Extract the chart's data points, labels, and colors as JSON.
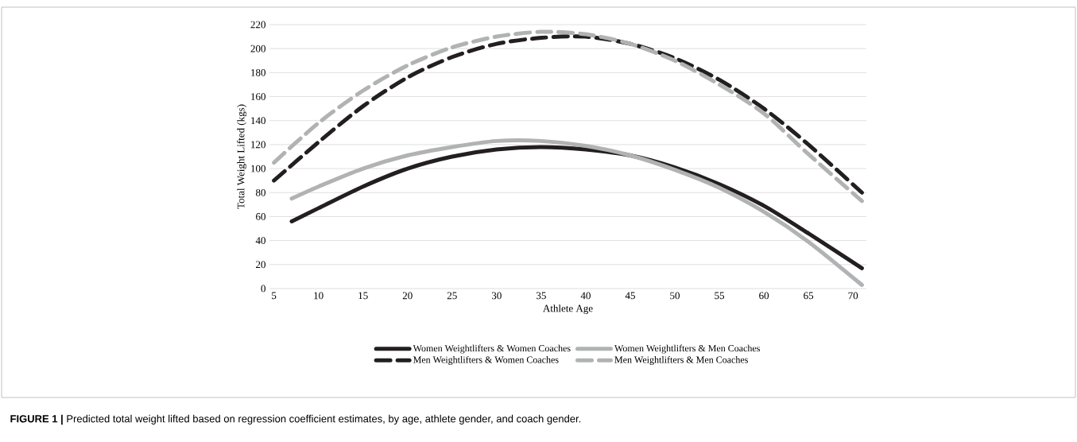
{
  "chart_data": {
    "type": "line",
    "xlabel": "Athlete Age",
    "ylabel": "Total Weight Lifted (kgs)",
    "annotations": [
      "**FIGURE 1 |** Predicted total weight lifted based on regression coefficient estimates, by age, athlete gender, and coach gender."
    ],
    "xlim": [
      4.5,
      71.5
    ],
    "ylim": [
      0,
      220
    ],
    "xticks": [
      5,
      10,
      15,
      20,
      25,
      30,
      35,
      40,
      45,
      50,
      55,
      60,
      65,
      70
    ],
    "yticks": [
      0,
      20,
      40,
      60,
      80,
      100,
      120,
      140,
      160,
      180,
      200,
      220
    ],
    "grid": "y",
    "legend": "bottom",
    "marker": "none",
    "series": [
      {
        "name": "Women Weightlifters & Women Coaches",
        "color": "#231f20",
        "line_style": "solid",
        "x": [
          7,
          10,
          15,
          20,
          25,
          30,
          35,
          40,
          45,
          50,
          55,
          60,
          65,
          71
        ],
        "values": [
          56,
          67,
          85,
          100,
          110,
          116,
          118,
          116,
          111,
          101,
          87,
          69,
          46,
          17
        ]
      },
      {
        "name": "Women Weightlifters & Men Coaches",
        "color": "#b1b2b4",
        "line_style": "solid",
        "x": [
          7,
          10,
          15,
          20,
          25,
          30,
          35,
          40,
          45,
          50,
          55,
          60,
          65,
          71
        ],
        "values": [
          75,
          85,
          100,
          111,
          118,
          123,
          123,
          119,
          111,
          99,
          84,
          64,
          39,
          3
        ]
      },
      {
        "name": "Men Weightlifters & Women Coaches",
        "color": "#231f20",
        "line_style": "dashed",
        "x": [
          5,
          10,
          15,
          20,
          25,
          30,
          35,
          40,
          45,
          50,
          55,
          60,
          65,
          71
        ],
        "values": [
          90,
          122,
          152,
          176,
          193,
          204,
          209,
          210,
          204,
          192,
          174,
          150,
          120,
          80
        ]
      },
      {
        "name": "Men Weightlifters & Men Coaches",
        "color": "#b1b2b4",
        "line_style": "dashed",
        "x": [
          5,
          10,
          15,
          20,
          25,
          30,
          35,
          40,
          45,
          50,
          55,
          60,
          65,
          71
        ],
        "values": [
          105,
          138,
          165,
          186,
          201,
          210,
          214,
          212,
          204,
          190,
          170,
          146,
          112,
          73
        ]
      }
    ]
  }
}
